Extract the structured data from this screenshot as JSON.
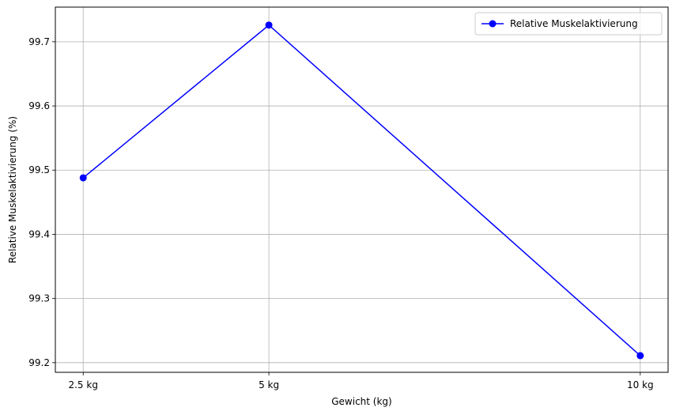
{
  "chart_data": {
    "type": "line",
    "xlabel": "Gewicht (kg)",
    "ylabel": "Relative Muskelaktivierung (%)",
    "x": [
      2.5,
      5,
      10
    ],
    "categories": [
      "2.5 kg",
      "5 kg",
      "10 kg"
    ],
    "yticks": [
      99.2,
      99.3,
      99.4,
      99.5,
      99.6,
      99.7
    ],
    "ytick_labels": [
      "99.2",
      "99.3",
      "99.4",
      "99.5",
      "99.6",
      "99.7"
    ],
    "ylim": [
      99.185,
      99.754
    ],
    "xlim": [
      2.125,
      10.375
    ],
    "grid": true,
    "legend_position": "top-right",
    "series": [
      {
        "name": "Relative Muskelaktivierung",
        "values": [
          99.488,
          99.726,
          99.211
        ],
        "color": "#0000ff",
        "marker": "circle"
      }
    ]
  }
}
